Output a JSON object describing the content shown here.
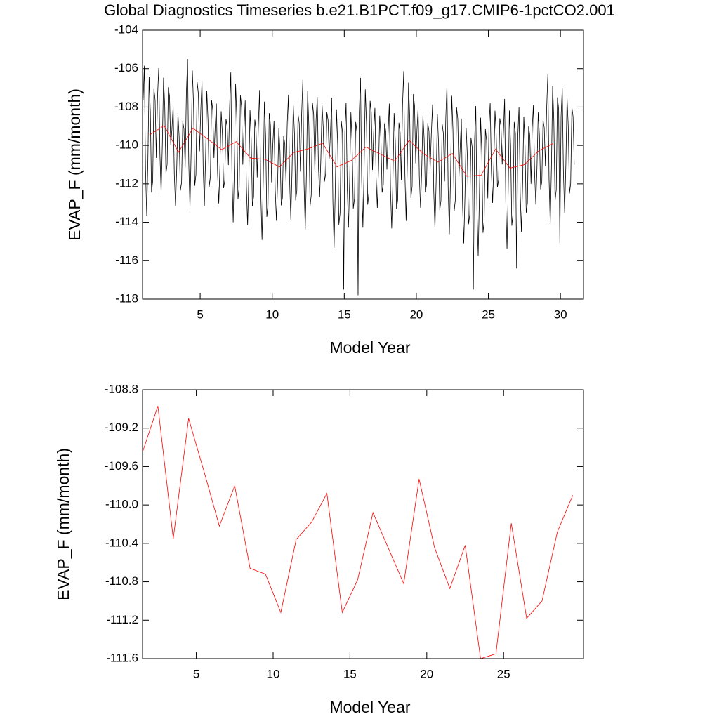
{
  "chart_data": [
    {
      "type": "line",
      "title": "Global Diagnostics Timeseries b.e21.B1PCT.f09_g17.CMIP6-1pctCO2.001",
      "xlabel": "Model Year",
      "ylabel": "EVAP_F (mm/month)",
      "xlim": [
        1,
        31.6
      ],
      "ylim": [
        -118,
        -104
      ],
      "xticks": [
        5,
        10,
        15,
        20,
        25,
        30
      ],
      "yticks": [
        -104,
        -106,
        -108,
        -110,
        -112,
        -114,
        -116,
        -118
      ],
      "series": [
        {
          "color": "#000000",
          "x": [
            1.042,
            1.125,
            1.208,
            1.292,
            1.375,
            1.458,
            1.542,
            1.625,
            1.708,
            1.792,
            1.875,
            1.958,
            2.042,
            2.125,
            2.208,
            2.292,
            2.375,
            2.458,
            2.542,
            2.625,
            2.708,
            2.792,
            2.875,
            2.958,
            3.042,
            3.125,
            3.208,
            3.292,
            3.375,
            3.458,
            3.542,
            3.625,
            3.708,
            3.792,
            3.875,
            3.958,
            4.042,
            4.125,
            4.208,
            4.292,
            4.375,
            4.458,
            4.542,
            4.625,
            4.708,
            4.792,
            4.875,
            4.958,
            5.042,
            5.125,
            5.208,
            5.292,
            5.375,
            5.458,
            5.542,
            5.625,
            5.708,
            5.792,
            5.875,
            5.958,
            6.042,
            6.125,
            6.208,
            6.292,
            6.375,
            6.458,
            6.542,
            6.625,
            6.708,
            6.792,
            6.875,
            6.958,
            7.042,
            7.125,
            7.208,
            7.292,
            7.375,
            7.458,
            7.542,
            7.625,
            7.708,
            7.792,
            7.875,
            7.958,
            8.042,
            8.125,
            8.208,
            8.292,
            8.375,
            8.458,
            8.542,
            8.625,
            8.708,
            8.792,
            8.875,
            8.958,
            9.042,
            9.125,
            9.208,
            9.292,
            9.375,
            9.458,
            9.542,
            9.625,
            9.708,
            9.792,
            9.875,
            9.958,
            10.042,
            10.125,
            10.208,
            10.292,
            10.375,
            10.458,
            10.542,
            10.625,
            10.708,
            10.792,
            10.875,
            10.958,
            11.042,
            11.125,
            11.208,
            11.292,
            11.375,
            11.458,
            11.542,
            11.625,
            11.708,
            11.792,
            11.875,
            11.958,
            12.042,
            12.125,
            12.208,
            12.292,
            12.375,
            12.458,
            12.542,
            12.625,
            12.708,
            12.792,
            12.875,
            12.958,
            13.042,
            13.125,
            13.208,
            13.292,
            13.375,
            13.458,
            13.542,
            13.625,
            13.708,
            13.792,
            13.875,
            13.958,
            14.042,
            14.125,
            14.208,
            14.292,
            14.375,
            14.458,
            14.542,
            14.625,
            14.708,
            14.792,
            14.875,
            14.958,
            15.042,
            15.125,
            15.208,
            15.292,
            15.375,
            15.458,
            15.542,
            15.625,
            15.708,
            15.792,
            15.875,
            15.958,
            16.042,
            16.125,
            16.208,
            16.292,
            16.375,
            16.458,
            16.542,
            16.625,
            16.708,
            16.792,
            16.875,
            16.958,
            17.042,
            17.125,
            17.208,
            17.292,
            17.375,
            17.458,
            17.542,
            17.625,
            17.708,
            17.792,
            17.875,
            17.958,
            18.042,
            18.125,
            18.208,
            18.292,
            18.375,
            18.458,
            18.542,
            18.625,
            18.708,
            18.792,
            18.875,
            18.958,
            19.042,
            19.125,
            19.208,
            19.292,
            19.375,
            19.458,
            19.542,
            19.625,
            19.708,
            19.792,
            19.875,
            19.958,
            20.042,
            20.125,
            20.208,
            20.292,
            20.375,
            20.458,
            20.542,
            20.625,
            20.708,
            20.792,
            20.875,
            20.958,
            21.042,
            21.125,
            21.208,
            21.292,
            21.375,
            21.458,
            21.542,
            21.625,
            21.708,
            21.792,
            21.875,
            21.958,
            22.042,
            22.125,
            22.208,
            22.292,
            22.375,
            22.458,
            22.542,
            22.625,
            22.708,
            22.792,
            22.875,
            22.958,
            23.042,
            23.125,
            23.208,
            23.292,
            23.375,
            23.458,
            23.542,
            23.625,
            23.708,
            23.792,
            23.875,
            23.958,
            24.042,
            24.125,
            24.208,
            24.292,
            24.375,
            24.458,
            24.542,
            24.625,
            24.708,
            24.792,
            24.875,
            24.958,
            25.042,
            25.125,
            25.208,
            25.292,
            25.375,
            25.458,
            25.542,
            25.625,
            25.708,
            25.792,
            25.875,
            25.958,
            26.042,
            26.125,
            26.208,
            26.292,
            26.375,
            26.458,
            26.542,
            26.625,
            26.708,
            26.792,
            26.875,
            26.958,
            27.042,
            27.125,
            27.208,
            27.292,
            27.375,
            27.458,
            27.542,
            27.625,
            27.708,
            27.792,
            27.875,
            27.958,
            28.042,
            28.125,
            28.208,
            28.292,
            28.375,
            28.458,
            28.542,
            28.625,
            28.708,
            28.792,
            28.875,
            28.958,
            29.042,
            29.125,
            29.208,
            29.292,
            29.375,
            29.458,
            29.542,
            29.625,
            29.708,
            29.792,
            29.875,
            29.958,
            30.042,
            30.125,
            30.208,
            30.292,
            30.375,
            30.458,
            30.542,
            30.625,
            30.708,
            30.792,
            30.875,
            30.958
          ],
          "values": [
            -107.65,
            -105.85,
            -111.25,
            -113.65,
            -110.65,
            -106.45,
            -108.25,
            -112.45,
            -111.85,
            -107.05,
            -107.65,
            -110.65,
            -107.47,
            -105.97,
            -110.47,
            -112.47,
            -109.97,
            -106.47,
            -107.97,
            -111.47,
            -110.97,
            -106.97,
            -107.47,
            -109.97,
            -109.15,
            -107.95,
            -111.55,
            -113.15,
            -111.15,
            -108.35,
            -109.55,
            -112.35,
            -111.95,
            -108.75,
            -109.15,
            -111.15,
            -107.3,
            -105.5,
            -110.9,
            -113.3,
            -110.3,
            -106.1,
            -107.9,
            -112.1,
            -111.5,
            -106.7,
            -107.3,
            -110.3,
            -108.15,
            -106.65,
            -111.15,
            -113.15,
            -110.65,
            -107.15,
            -108.65,
            -112.15,
            -111.65,
            -107.65,
            -108.15,
            -110.65,
            -109.02,
            -107.82,
            -111.42,
            -113.02,
            -111.02,
            -108.22,
            -109.42,
            -112.22,
            -111.82,
            -108.62,
            -109.02,
            -111.02,
            -108,
            -106.2,
            -111.6,
            -114,
            -111,
            -106.8,
            -108.6,
            -112.8,
            -112.2,
            -107.4,
            -108,
            -111,
            -109.16,
            -107.66,
            -112.16,
            -114.16,
            -111.66,
            -108.16,
            -109.66,
            -113.16,
            -112.66,
            -108.66,
            -109.16,
            -111.66,
            -108.92,
            -107.12,
            -112.52,
            -114.92,
            -111.92,
            -107.72,
            -109.52,
            -113.72,
            -113.12,
            -108.32,
            -108.92,
            -111.92,
            -109.92,
            -108.72,
            -112.32,
            -113.92,
            -111.92,
            -109.12,
            -110.32,
            -113.12,
            -112.72,
            -109.52,
            -109.92,
            -111.92,
            -108.86,
            -107.36,
            -111.86,
            -113.86,
            -111.36,
            -107.86,
            -109.36,
            -112.86,
            -112.36,
            -108.36,
            -108.86,
            -111.36,
            -108.38,
            -106.58,
            -111.98,
            -114.38,
            -111.38,
            -107.18,
            -108.98,
            -113.18,
            -112.58,
            -107.78,
            -108.38,
            -111.38,
            -108.68,
            -107.48,
            -111.08,
            -112.68,
            -110.68,
            -107.88,
            -109.08,
            -111.88,
            -111.48,
            -108.28,
            -108.68,
            -110.68,
            -109.32,
            -107.52,
            -112.92,
            -115.32,
            -112.32,
            -108.12,
            -109.92,
            -114.12,
            -113.52,
            -108.72,
            -109.32,
            -117.5,
            -109.28,
            -107.78,
            -112.28,
            -114.28,
            -111.78,
            -108.28,
            -109.78,
            -113.28,
            -112.78,
            -108.78,
            -109.28,
            -117.8,
            -108.28,
            -106.48,
            -111.88,
            -114.28,
            -111.28,
            -107.08,
            -108.88,
            -113.08,
            -112.48,
            -107.68,
            -108.28,
            -111.28,
            -109.25,
            -108.05,
            -111.65,
            -113.25,
            -111.25,
            -108.45,
            -109.65,
            -112.45,
            -112.05,
            -108.85,
            -109.25,
            -111.25,
            -109.32,
            -107.82,
            -112.32,
            -114.32,
            -111.82,
            -108.32,
            -109.82,
            -113.32,
            -112.82,
            -108.82,
            -109.32,
            -111.82,
            -107.93,
            -106.13,
            -111.53,
            -113.93,
            -110.93,
            -106.73,
            -108.53,
            -112.73,
            -112.13,
            -107.33,
            -107.93,
            -110.93,
            -109.24,
            -108.04,
            -111.64,
            -113.24,
            -111.24,
            -108.44,
            -109.64,
            -112.44,
            -112.04,
            -108.84,
            -109.24,
            -111.24,
            -109.37,
            -107.87,
            -112.37,
            -114.37,
            -111.87,
            -108.37,
            -109.87,
            -113.37,
            -112.87,
            -108.87,
            -109.37,
            -111.87,
            -108.62,
            -106.82,
            -112.22,
            -114.62,
            -111.62,
            -107.42,
            -109.22,
            -113.42,
            -112.82,
            -108.02,
            -108.62,
            -111.62,
            -110.1,
            -108.6,
            -113.1,
            -115.1,
            -112.6,
            -109.1,
            -110.6,
            -114.1,
            -113.6,
            -109.6,
            -110.1,
            -117.5,
            -109.75,
            -107.95,
            -113.35,
            -115.75,
            -112.75,
            -108.55,
            -110.35,
            -114.55,
            -113.95,
            -109.15,
            -109.75,
            -112.75,
            -108.99,
            -107.79,
            -111.39,
            -112.99,
            -110.99,
            -108.19,
            -109.39,
            -112.19,
            -111.79,
            -108.59,
            -108.99,
            -110.99,
            -109.38,
            -107.58,
            -112.98,
            -115.38,
            -112.38,
            -108.18,
            -109.98,
            -114.18,
            -113.58,
            -108.78,
            -109.38,
            -116.4,
            -109.5,
            -108,
            -112.5,
            -114.5,
            -112,
            -108.5,
            -110,
            -113.5,
            -113,
            -109,
            -109.5,
            -112,
            -109.08,
            -107.88,
            -111.48,
            -113.08,
            -111.08,
            -108.28,
            -109.48,
            -112.28,
            -111.88,
            -108.68,
            -109.08,
            -111.08,
            -108.1,
            -106.3,
            -111.7,
            -114.1,
            -111.1,
            -106.9,
            -108.7,
            -112.9,
            -112.3,
            -107.5,
            -108.1,
            -115.1,
            -108.5,
            -107,
            -111.5,
            -113.5,
            -111,
            -107.5,
            -109,
            -112.5,
            -112,
            -108,
            -108.5,
            -111
          ]
        },
        {
          "color": "#ff0000",
          "x": [
            1.5,
            2.5,
            3.5,
            4.5,
            5.5,
            6.5,
            7.5,
            8.5,
            9.5,
            10.5,
            11.5,
            12.5,
            13.5,
            14.5,
            15.5,
            16.5,
            17.5,
            18.5,
            19.5,
            20.5,
            21.5,
            22.5,
            23.5,
            24.5,
            25.5,
            26.5,
            27.5,
            28.5,
            29.5
          ],
          "values": [
            -109.45,
            -108.97,
            -110.35,
            -109.1,
            -109.65,
            -110.22,
            -109.8,
            -110.66,
            -110.72,
            -111.12,
            -110.36,
            -110.18,
            -109.88,
            -111.12,
            -110.78,
            -110.08,
            -110.45,
            -110.82,
            -109.73,
            -110.44,
            -110.87,
            -110.42,
            -111.6,
            -111.55,
            -110.19,
            -111.18,
            -111.0,
            -110.28,
            -109.9
          ]
        }
      ]
    },
    {
      "type": "line",
      "xlabel": "Model Year",
      "ylabel": "EVAP_F (mm/month)",
      "xlim": [
        1.5,
        30.2
      ],
      "ylim": [
        -111.6,
        -108.8
      ],
      "xticks": [
        5,
        10,
        15,
        20,
        25
      ],
      "yticks": [
        -108.8,
        -109.2,
        -109.6,
        {
          "value": -110,
          "label": "-110.0"
        },
        -110.4,
        -110.8,
        -111.2,
        -111.6
      ],
      "series": [
        {
          "color": "#ff0000",
          "x": [
            1.5,
            2.5,
            3.5,
            4.5,
            5.5,
            6.5,
            7.5,
            8.5,
            9.5,
            10.5,
            11.5,
            12.5,
            13.5,
            14.5,
            15.5,
            16.5,
            17.5,
            18.5,
            19.5,
            20.5,
            21.5,
            22.5,
            23.5,
            24.5,
            25.5,
            26.5,
            27.5,
            28.5,
            29.5
          ],
          "values": [
            -109.45,
            -108.97,
            -110.35,
            -109.1,
            -109.65,
            -110.22,
            -109.8,
            -110.66,
            -110.72,
            -111.12,
            -110.36,
            -110.18,
            -109.88,
            -111.12,
            -110.78,
            -110.08,
            -110.45,
            -110.82,
            -109.73,
            -110.44,
            -110.87,
            -110.42,
            -111.6,
            -111.55,
            -110.19,
            -111.18,
            -111.0,
            -110.28,
            -109.9
          ]
        }
      ]
    }
  ]
}
